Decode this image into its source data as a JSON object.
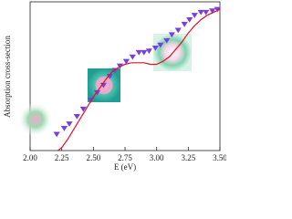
{
  "chart_data": {
    "type": "line",
    "x_label": "E (eV)",
    "y_label": "Absorption cross-section",
    "xlim": [
      2.0,
      3.5
    ],
    "ylim": [
      0,
      1
    ],
    "xticks": [
      {
        "value": 2.0,
        "label": "2.00"
      },
      {
        "value": 2.25,
        "label": "2.25"
      },
      {
        "value": 2.5,
        "label": "2.50"
      },
      {
        "value": 2.75,
        "label": "2.75"
      },
      {
        "value": 3.0,
        "label": "3.00"
      },
      {
        "value": 3.25,
        "label": "3.25"
      },
      {
        "value": 3.5,
        "label": "3.50"
      }
    ],
    "series": [
      {
        "mode": "markers",
        "color": "#7a3ee0",
        "x": [
          2.21,
          2.27,
          2.31,
          2.37,
          2.42,
          2.48,
          2.53,
          2.58,
          2.63,
          2.67,
          2.71,
          2.76,
          2.81,
          2.86,
          2.9,
          2.94,
          2.99,
          3.03,
          3.08,
          3.12,
          3.17,
          3.22,
          3.26,
          3.3,
          3.35,
          3.39,
          3.44,
          3.48
        ],
        "values": [
          0.11,
          0.15,
          0.18,
          0.23,
          0.28,
          0.34,
          0.39,
          0.44,
          0.5,
          0.54,
          0.57,
          0.6,
          0.63,
          0.66,
          0.66,
          0.67,
          0.69,
          0.71,
          0.74,
          0.78,
          0.81,
          0.85,
          0.88,
          0.91,
          0.93,
          0.93,
          0.94,
          0.95
        ]
      },
      {
        "mode": "line",
        "color": "#e0102a",
        "x": [
          2.22,
          2.25,
          2.3,
          2.35,
          2.4,
          2.45,
          2.5,
          2.55,
          2.6,
          2.65,
          2.7,
          2.75,
          2.8,
          2.85,
          2.9,
          2.95,
          3.0,
          3.05,
          3.1,
          3.15,
          3.2,
          3.25,
          3.3,
          3.35,
          3.4,
          3.45,
          3.5
        ],
        "values": [
          0,
          0.02,
          0.08,
          0.15,
          0.22,
          0.29,
          0.36,
          0.42,
          0.48,
          0.53,
          0.56,
          0.58,
          0.59,
          0.59,
          0.59,
          0.58,
          0.58,
          0.6,
          0.63,
          0.68,
          0.73,
          0.79,
          0.84,
          0.88,
          0.91,
          0.93,
          0.95
        ]
      }
    ]
  }
}
